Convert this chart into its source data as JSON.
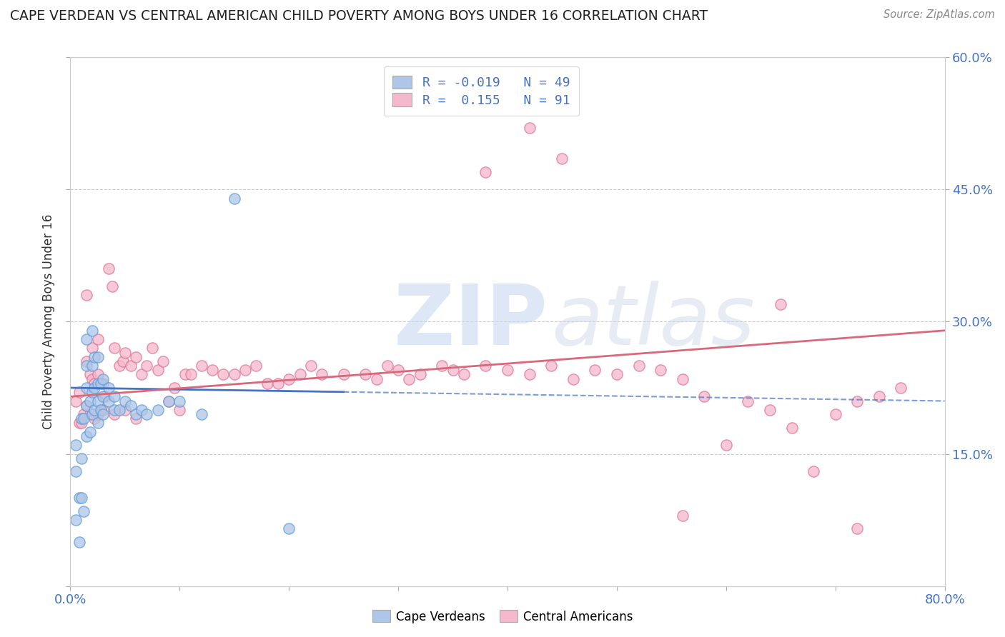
{
  "title": "CAPE VERDEAN VS CENTRAL AMERICAN CHILD POVERTY AMONG BOYS UNDER 16 CORRELATION CHART",
  "source": "Source: ZipAtlas.com",
  "ylabel": "Child Poverty Among Boys Under 16",
  "xlim": [
    0,
    0.8
  ],
  "ylim": [
    0,
    0.6
  ],
  "legend_blue_label": "R = -0.019   N = 49",
  "legend_pink_label": "R =  0.155   N = 91",
  "blue_fill_color": "#aec6e8",
  "pink_fill_color": "#f5b8cc",
  "blue_edge_color": "#5b9bd5",
  "pink_edge_color": "#e07090",
  "blue_line_color": "#4472c4",
  "pink_line_color": "#d9687a",
  "cape_verdean_x": [
    0.005,
    0.005,
    0.005,
    0.008,
    0.008,
    0.01,
    0.01,
    0.01,
    0.012,
    0.012,
    0.015,
    0.015,
    0.015,
    0.015,
    0.015,
    0.018,
    0.018,
    0.02,
    0.02,
    0.02,
    0.02,
    0.022,
    0.022,
    0.022,
    0.025,
    0.025,
    0.025,
    0.025,
    0.028,
    0.028,
    0.03,
    0.03,
    0.03,
    0.035,
    0.035,
    0.04,
    0.04,
    0.045,
    0.05,
    0.055,
    0.06,
    0.065,
    0.07,
    0.08,
    0.09,
    0.1,
    0.12,
    0.15,
    0.2
  ],
  "cape_verdean_y": [
    0.075,
    0.13,
    0.16,
    0.05,
    0.1,
    0.1,
    0.145,
    0.19,
    0.085,
    0.19,
    0.17,
    0.205,
    0.225,
    0.25,
    0.28,
    0.175,
    0.21,
    0.195,
    0.22,
    0.25,
    0.29,
    0.2,
    0.225,
    0.26,
    0.185,
    0.21,
    0.23,
    0.26,
    0.2,
    0.23,
    0.195,
    0.215,
    0.235,
    0.21,
    0.225,
    0.2,
    0.215,
    0.2,
    0.21,
    0.205,
    0.195,
    0.2,
    0.195,
    0.2,
    0.21,
    0.21,
    0.195,
    0.44,
    0.065
  ],
  "central_american_x": [
    0.005,
    0.008,
    0.008,
    0.01,
    0.012,
    0.015,
    0.015,
    0.015,
    0.018,
    0.018,
    0.02,
    0.02,
    0.02,
    0.022,
    0.022,
    0.025,
    0.025,
    0.025,
    0.028,
    0.03,
    0.03,
    0.032,
    0.035,
    0.038,
    0.04,
    0.04,
    0.045,
    0.048,
    0.05,
    0.05,
    0.055,
    0.06,
    0.06,
    0.065,
    0.07,
    0.075,
    0.08,
    0.085,
    0.09,
    0.095,
    0.1,
    0.105,
    0.11,
    0.12,
    0.13,
    0.14,
    0.15,
    0.16,
    0.17,
    0.18,
    0.19,
    0.2,
    0.21,
    0.22,
    0.23,
    0.25,
    0.27,
    0.28,
    0.29,
    0.3,
    0.31,
    0.32,
    0.34,
    0.35,
    0.36,
    0.38,
    0.4,
    0.42,
    0.44,
    0.46,
    0.48,
    0.5,
    0.52,
    0.54,
    0.56,
    0.58,
    0.6,
    0.62,
    0.64,
    0.66,
    0.68,
    0.7,
    0.72,
    0.74,
    0.76,
    0.38,
    0.42,
    0.45,
    0.56,
    0.65,
    0.72
  ],
  "central_american_y": [
    0.21,
    0.185,
    0.22,
    0.185,
    0.195,
    0.205,
    0.255,
    0.33,
    0.195,
    0.24,
    0.195,
    0.235,
    0.27,
    0.19,
    0.23,
    0.195,
    0.24,
    0.28,
    0.2,
    0.2,
    0.23,
    0.215,
    0.36,
    0.34,
    0.195,
    0.27,
    0.25,
    0.255,
    0.2,
    0.265,
    0.25,
    0.19,
    0.26,
    0.24,
    0.25,
    0.27,
    0.245,
    0.255,
    0.21,
    0.225,
    0.2,
    0.24,
    0.24,
    0.25,
    0.245,
    0.24,
    0.24,
    0.245,
    0.25,
    0.23,
    0.23,
    0.235,
    0.24,
    0.25,
    0.24,
    0.24,
    0.24,
    0.235,
    0.25,
    0.245,
    0.235,
    0.24,
    0.25,
    0.245,
    0.24,
    0.25,
    0.245,
    0.24,
    0.25,
    0.235,
    0.245,
    0.24,
    0.25,
    0.245,
    0.235,
    0.215,
    0.16,
    0.21,
    0.2,
    0.18,
    0.13,
    0.195,
    0.21,
    0.215,
    0.225,
    0.47,
    0.52,
    0.485,
    0.08,
    0.32,
    0.065
  ]
}
